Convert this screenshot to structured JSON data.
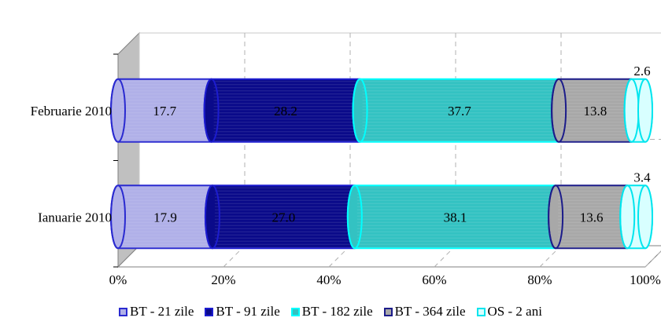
{
  "chart_data": {
    "type": "bar",
    "orientation": "horizontal",
    "stacked": "percent",
    "style": "3d-cylinder",
    "categories": [
      "Februarie 2010",
      "Ianuarie 2010"
    ],
    "series": [
      {
        "name": "BT - 21 zile",
        "values": [
          17.7,
          17.9
        ],
        "labels": [
          "17.7",
          "17.9"
        ],
        "color": "#b0b0e8",
        "edge": "#2a2ad0"
      },
      {
        "name": "BT - 91 zile",
        "values": [
          28.2,
          27.0
        ],
        "labels": [
          "28.2",
          "27.0"
        ],
        "color": "#0a0a8a",
        "edge": "#1c1cd0"
      },
      {
        "name": "BT - 182 zile",
        "values": [
          37.7,
          38.1
        ],
        "labels": [
          "37.7",
          "38.1"
        ],
        "color": "#33c2c2",
        "edge": "#00ffff"
      },
      {
        "name": "BT - 364 zile",
        "values": [
          13.8,
          13.6
        ],
        "labels": [
          "13.8",
          "13.6"
        ],
        "color": "#a8a8a8",
        "edge": "#1c1c8a"
      },
      {
        "name": "OS - 2 ani",
        "values": [
          2.6,
          3.4
        ],
        "labels": [
          "2.6",
          "3.4"
        ],
        "color": "#d8ffff",
        "edge": "#00e5ee"
      }
    ],
    "x_ticks": [
      "0%",
      "20%",
      "40%",
      "60%",
      "80%",
      "100%"
    ],
    "xlim": [
      0,
      100
    ],
    "grid": true,
    "legend_position": "bottom",
    "title": "",
    "xlabel": "",
    "ylabel": ""
  }
}
